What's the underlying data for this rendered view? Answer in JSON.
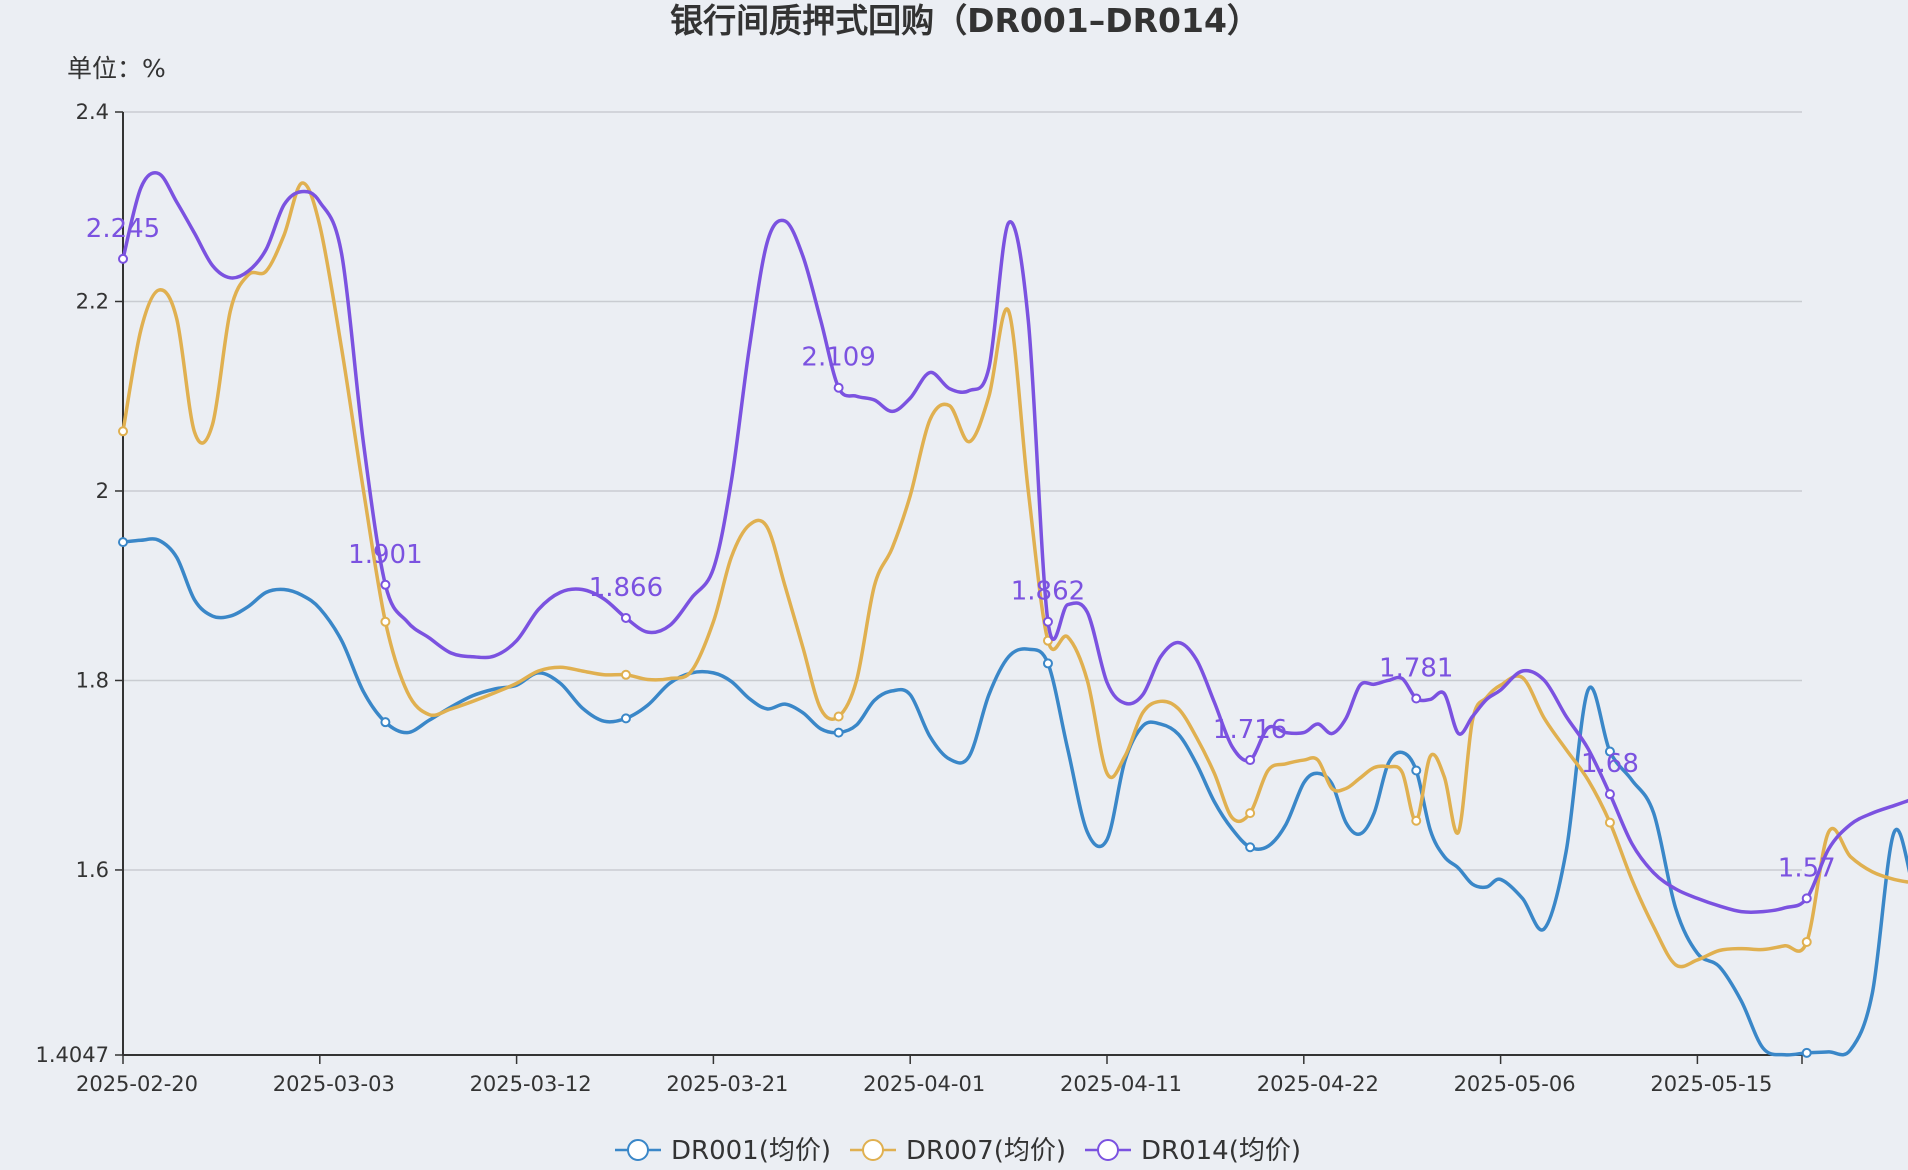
{
  "chart_data": {
    "type": "line",
    "title": "银行间质押式回购（DR001–DR014）",
    "unit_label": "单位：%",
    "x_tick_labels": [
      "2025-02-20",
      "2025-03-03",
      "2025-03-12",
      "2025-03-21",
      "2025-04-01",
      "2025-04-11",
      "2025-04-22",
      "2025-05-06",
      "2025-05-15"
    ],
    "y_tick_labels": [
      "2.4",
      "2.2",
      "2",
      "1.8",
      "1.6",
      "1.4047"
    ],
    "ylim": [
      1.4047,
      2.4
    ],
    "x_range": [
      "2025-02-20",
      "2025-05-20"
    ],
    "grid": true,
    "legend_position": "bottom",
    "series": [
      {
        "name": "DR001(均价)",
        "color": "#3A87C8",
        "values": [
          [
            "2025-02-20",
            1.946
          ],
          [
            "2025-02-21",
            1.948
          ],
          [
            "2025-02-22",
            1.948
          ],
          [
            "2025-02-23",
            1.93
          ],
          [
            "2025-02-24",
            1.885
          ],
          [
            "2025-02-25",
            1.868
          ],
          [
            "2025-02-26",
            1.868
          ],
          [
            "2025-02-27",
            1.878
          ],
          [
            "2025-02-28",
            1.893
          ],
          [
            "2025-03-01",
            1.896
          ],
          [
            "2025-03-02",
            1.89
          ],
          [
            "2025-03-03",
            1.876
          ],
          [
            "2025-03-04",
            1.842
          ],
          [
            "2025-03-05",
            1.788
          ],
          [
            "2025-03-06",
            1.756
          ],
          [
            "2025-03-07",
            1.745
          ],
          [
            "2025-03-08",
            1.758
          ],
          [
            "2025-03-09",
            1.772
          ],
          [
            "2025-03-10",
            1.784
          ],
          [
            "2025-03-11",
            1.791
          ],
          [
            "2025-03-12",
            1.795
          ],
          [
            "2025-03-13",
            1.808
          ],
          [
            "2025-03-14",
            1.797
          ],
          [
            "2025-03-15",
            1.771
          ],
          [
            "2025-03-16",
            1.757
          ],
          [
            "2025-03-17",
            1.76
          ],
          [
            "2025-03-18",
            1.774
          ],
          [
            "2025-03-19",
            1.797
          ],
          [
            "2025-03-20",
            1.808
          ],
          [
            "2025-03-21",
            1.808
          ],
          [
            "2025-03-22",
            1.799
          ],
          [
            "2025-03-23",
            1.781
          ],
          [
            "2025-03-24",
            1.77
          ],
          [
            "2025-03-25",
            1.775
          ],
          [
            "2025-03-26",
            1.766
          ],
          [
            "2025-03-27",
            1.749
          ],
          [
            "2025-03-28",
            1.745
          ],
          [
            "2025-03-29",
            1.753
          ],
          [
            "2025-03-30",
            1.779
          ],
          [
            "2025-03-31",
            1.789
          ],
          [
            "2025-04-01",
            1.785
          ],
          [
            "2025-04-02",
            1.741
          ],
          [
            "2025-04-03",
            1.717
          ],
          [
            "2025-04-04",
            1.72
          ],
          [
            "2025-04-05",
            1.785
          ],
          [
            "2025-04-06",
            1.825
          ],
          [
            "2025-04-07",
            1.833
          ],
          [
            "2025-04-08",
            1.818
          ],
          [
            "2025-04-09",
            1.728
          ],
          [
            "2025-04-10",
            1.64
          ],
          [
            "2025-04-11",
            1.632
          ],
          [
            "2025-04-12",
            1.715
          ]
        ]
      }
    ]
  }
}
